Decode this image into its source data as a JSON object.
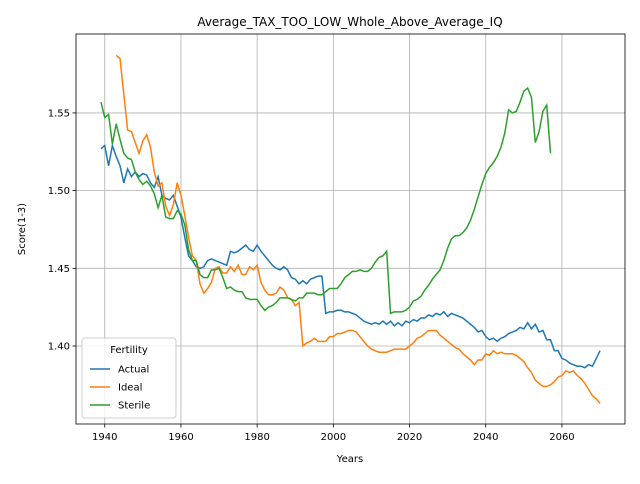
{
  "chart_data": {
    "type": "line",
    "title": "Average_TAX_TOO_LOW_Whole_Above_Average_IQ",
    "xlabel": "Years",
    "ylabel": "Score(1-3)",
    "legend_title": "Fertility",
    "legend_loc": "lower left",
    "grid": true,
    "xlim": [
      1932.45,
      2076.55
    ],
    "xticks": [
      1940,
      1960,
      1980,
      2000,
      2020,
      2040,
      2060
    ],
    "ylim": [
      1.3498,
      1.6008
    ],
    "yticks": [
      {
        "value": 1.4,
        "label": "1.40"
      },
      1.45,
      {
        "value": 1.5,
        "label": "1.50"
      },
      1.55
    ],
    "x": [
      1939,
      1940,
      1941,
      1942,
      1943,
      1944,
      1945,
      1946,
      1947,
      1948,
      1949,
      1950,
      1951,
      1952,
      1953,
      1954,
      1955,
      1956,
      1957,
      1958,
      1959,
      1960,
      1961,
      1962,
      1963,
      1964,
      1965,
      1966,
      1967,
      1968,
      1969,
      1970,
      1971,
      1972,
      1973,
      1974,
      1975,
      1976,
      1977,
      1978,
      1979,
      1980,
      1981,
      1982,
      1983,
      1984,
      1985,
      1986,
      1987,
      1988,
      1989,
      1990,
      1991,
      1992,
      1993,
      1994,
      1995,
      1996,
      1997,
      1998,
      1999,
      2000,
      2001,
      2002,
      2003,
      2004,
      2005,
      2006,
      2007,
      2008,
      2009,
      2010,
      2011,
      2012,
      2013,
      2014,
      2015,
      2016,
      2017,
      2018,
      2019,
      2020,
      2021,
      2022,
      2023,
      2024,
      2025,
      2026,
      2027,
      2028,
      2029,
      2030,
      2031,
      2032,
      2033,
      2034,
      2035,
      2036,
      2037,
      2038,
      2039,
      2040,
      2041,
      2042,
      2043,
      2044,
      2045,
      2046,
      2047,
      2048,
      2049,
      2050,
      2051,
      2052,
      2053,
      2054,
      2055,
      2056,
      2057,
      2058,
      2059,
      2060,
      2061,
      2062,
      2063,
      2064,
      2065,
      2066,
      2067,
      2068,
      2069,
      2070
    ],
    "series": [
      {
        "name": "Actual",
        "color": "#1f77b4",
        "values": [
          1.527,
          1.529,
          1.516,
          1.529,
          1.522,
          1.516,
          1.505,
          1.514,
          1.509,
          1.512,
          1.509,
          1.511,
          1.51,
          1.505,
          1.502,
          1.509,
          1.497,
          1.495,
          1.494,
          1.497,
          1.49,
          1.483,
          1.47,
          1.458,
          1.455,
          1.451,
          1.45,
          1.451,
          1.455,
          1.456,
          1.455,
          1.454,
          1.453,
          1.452,
          1.461,
          1.46,
          1.461,
          1.463,
          1.465,
          1.462,
          1.461,
          1.465,
          1.461,
          1.458,
          1.455,
          1.452,
          1.45,
          1.449,
          1.451,
          1.449,
          1.444,
          1.443,
          1.44,
          1.442,
          1.44,
          1.443,
          1.444,
          1.445,
          1.445,
          1.421,
          1.422,
          1.422,
          1.423,
          1.423,
          1.422,
          1.422,
          1.421,
          1.42,
          1.418,
          1.416,
          1.415,
          1.414,
          1.415,
          1.414,
          1.416,
          1.414,
          1.416,
          1.413,
          1.415,
          1.413,
          1.416,
          1.415,
          1.417,
          1.416,
          1.418,
          1.418,
          1.42,
          1.419,
          1.421,
          1.42,
          1.422,
          1.419,
          1.421,
          1.42,
          1.419,
          1.418,
          1.416,
          1.414,
          1.412,
          1.409,
          1.41,
          1.406,
          1.404,
          1.405,
          1.403,
          1.405,
          1.406,
          1.408,
          1.409,
          1.41,
          1.412,
          1.411,
          1.415,
          1.411,
          1.414,
          1.409,
          1.41,
          1.404,
          1.404,
          1.397,
          1.397,
          1.392,
          1.391,
          1.389,
          1.388,
          1.387,
          1.387,
          1.386,
          1.388,
          1.387,
          1.392,
          1.397
        ]
      },
      {
        "name": "Ideal",
        "color": "#ff7f0e",
        "values": [
          null,
          null,
          null,
          null,
          1.587,
          1.585,
          1.562,
          1.539,
          1.538,
          1.531,
          1.524,
          1.532,
          1.536,
          1.528,
          1.512,
          1.503,
          1.505,
          1.49,
          1.484,
          1.491,
          1.505,
          1.497,
          1.484,
          1.47,
          1.458,
          1.455,
          1.44,
          1.434,
          1.437,
          1.441,
          1.45,
          1.451,
          1.447,
          1.447,
          1.451,
          1.448,
          1.452,
          1.446,
          1.446,
          1.451,
          1.449,
          1.452,
          1.441,
          1.436,
          1.433,
          1.433,
          1.434,
          1.438,
          1.436,
          1.431,
          1.43,
          1.426,
          1.428,
          1.4,
          1.402,
          1.403,
          1.405,
          1.403,
          1.403,
          1.403,
          1.406,
          1.406,
          1.408,
          1.408,
          1.409,
          1.41,
          1.41,
          1.409,
          1.406,
          1.403,
          1.4,
          1.398,
          1.397,
          1.396,
          1.396,
          1.396,
          1.397,
          1.398,
          1.398,
          1.398,
          1.398,
          1.4,
          1.402,
          1.405,
          1.406,
          1.408,
          1.41,
          1.41,
          1.41,
          1.407,
          1.405,
          1.403,
          1.401,
          1.399,
          1.398,
          1.395,
          1.393,
          1.391,
          1.388,
          1.391,
          1.391,
          1.395,
          1.394,
          1.397,
          1.395,
          1.396,
          1.395,
          1.395,
          1.395,
          1.394,
          1.392,
          1.39,
          1.386,
          1.383,
          1.378,
          1.376,
          1.374,
          1.374,
          1.375,
          1.377,
          1.38,
          1.381,
          1.384,
          1.383,
          1.384,
          1.381,
          1.379,
          1.376,
          1.372,
          1.368,
          1.366,
          1.363
        ]
      },
      {
        "name": "Sterile",
        "color": "#2ca02c",
        "values": [
          1.557,
          1.547,
          1.549,
          1.53,
          1.543,
          1.533,
          1.524,
          1.521,
          1.52,
          1.512,
          1.507,
          1.504,
          1.506,
          1.503,
          1.498,
          1.489,
          1.497,
          1.483,
          1.482,
          1.482,
          1.487,
          1.485,
          1.478,
          1.462,
          1.455,
          1.455,
          1.446,
          1.444,
          1.444,
          1.449,
          1.449,
          1.45,
          1.444,
          1.437,
          1.438,
          1.436,
          1.435,
          1.435,
          1.431,
          1.43,
          1.43,
          1.43,
          1.426,
          1.423,
          1.425,
          1.426,
          1.428,
          1.431,
          1.431,
          1.431,
          1.43,
          1.429,
          1.431,
          1.431,
          1.434,
          1.434,
          1.434,
          1.433,
          1.433,
          1.435,
          1.437,
          1.437,
          1.437,
          1.44,
          1.444,
          1.446,
          1.448,
          1.448,
          1.449,
          1.448,
          1.448,
          1.45,
          1.454,
          1.457,
          1.458,
          1.461,
          1.421,
          1.422,
          1.422,
          1.422,
          1.423,
          1.425,
          1.429,
          1.43,
          1.432,
          1.436,
          1.439,
          1.443,
          1.446,
          1.449,
          1.455,
          1.463,
          1.469,
          1.471,
          1.471,
          1.473,
          1.476,
          1.481,
          1.488,
          1.496,
          1.504,
          1.511,
          1.515,
          1.518,
          1.522,
          1.528,
          1.537,
          1.552,
          1.55,
          1.551,
          1.557,
          1.564,
          1.566,
          1.56,
          1.531,
          1.538,
          1.551,
          1.555,
          1.524,
          null,
          null,
          null,
          null,
          null,
          null,
          null,
          null,
          null,
          null,
          null,
          null,
          null
        ]
      }
    ]
  }
}
